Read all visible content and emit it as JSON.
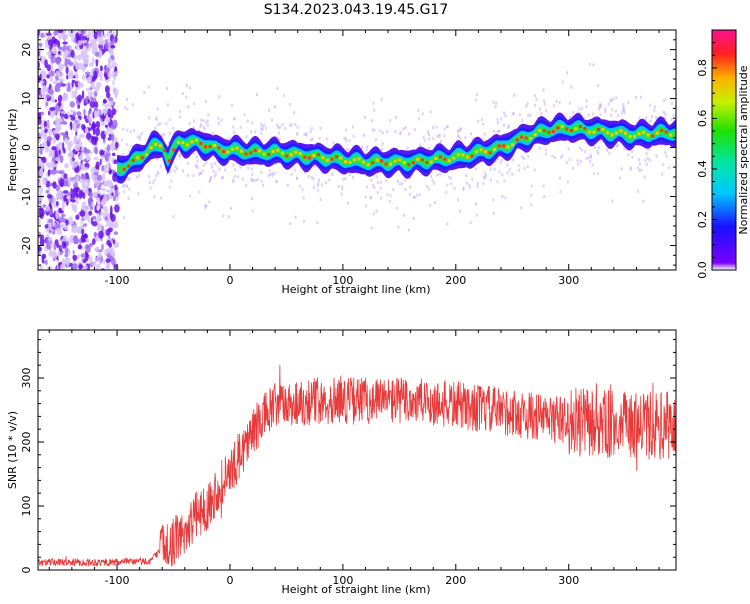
{
  "title": "S134.2023.043.19.45.G17",
  "chart_data": [
    {
      "type": "heatmap",
      "xlabel": "Height of straight line (km)",
      "ylabel": "Frequency (Hz)",
      "xlim": [
        -170,
        395
      ],
      "ylim": [
        -25,
        24
      ],
      "x_ticks": [
        -100,
        0,
        100,
        200,
        300
      ],
      "y_ticks": [
        -20,
        -10,
        0,
        10,
        20
      ],
      "colorbar": {
        "label": "Normalized spectral amplitude",
        "range": [
          0.0,
          0.95
        ],
        "ticks": [
          0.0,
          0.2,
          0.4,
          0.6,
          0.8
        ]
      },
      "ridge": {
        "x": [
          -100,
          -90,
          -80,
          -70,
          -60,
          -55,
          -50,
          -45,
          -40,
          -30,
          -20,
          -10,
          0,
          20,
          40,
          60,
          80,
          100,
          120,
          140,
          160,
          180,
          200,
          220,
          240,
          260,
          280,
          300,
          320,
          340,
          360,
          380,
          395
        ],
        "y": [
          -4.5,
          -3.5,
          -2.0,
          0.0,
          0.5,
          -2.5,
          -0.5,
          1.5,
          1.0,
          1.0,
          0.5,
          -0.5,
          -0.5,
          -1.0,
          -1.0,
          -1.5,
          -2.0,
          -2.5,
          -3.0,
          -3.0,
          -3.0,
          -2.5,
          -2.0,
          -1.0,
          0.0,
          2.0,
          3.5,
          4.0,
          3.5,
          3.0,
          2.5,
          3.0,
          3.0
        ]
      },
      "noise_region_x": [
        -170,
        -100
      ]
    },
    {
      "type": "line",
      "xlabel": "Height of straight line (km)",
      "ylabel": "SNR (10 * v/v)",
      "xlim": [
        -170,
        395
      ],
      "ylim": [
        0,
        375
      ],
      "x_ticks": [
        -100,
        0,
        100,
        200,
        300
      ],
      "y_ticks": [
        0,
        100,
        200,
        300
      ],
      "series": [
        {
          "color": "#e83a3a",
          "envelope_x": [
            -170,
            -100,
            -70,
            -60,
            -50,
            -40,
            -30,
            -20,
            -10,
            0,
            10,
            20,
            30,
            40,
            60,
            80,
            100,
            150,
            200,
            250,
            300,
            350,
            395
          ],
          "envelope_y": [
            12,
            12,
            14,
            35,
            45,
            60,
            85,
            100,
            130,
            150,
            185,
            215,
            240,
            255,
            262,
            265,
            265,
            265,
            258,
            245,
            232,
            225,
            225
          ]
        }
      ]
    }
  ]
}
